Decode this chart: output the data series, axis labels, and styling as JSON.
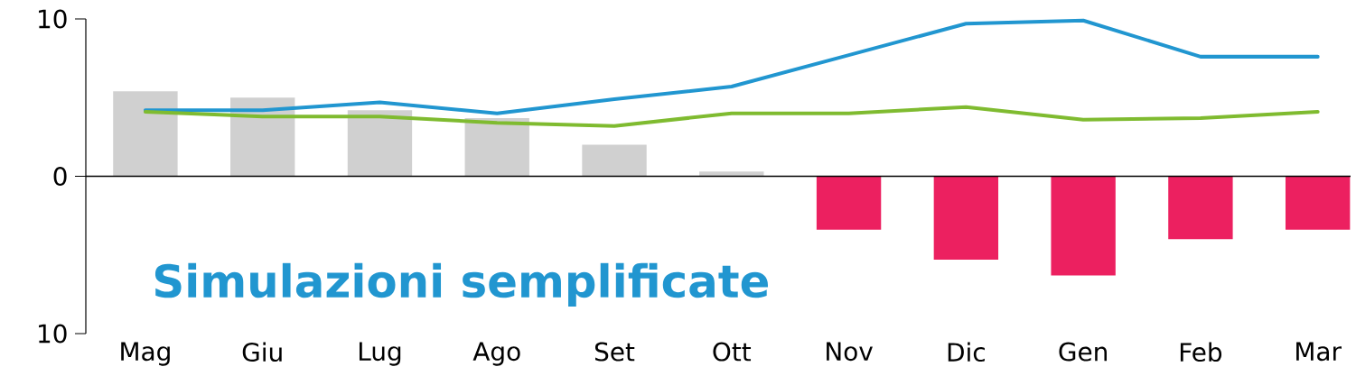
{
  "chart_data": {
    "type": "bar",
    "categories": [
      "Mag",
      "Giu",
      "Lug",
      "Ago",
      "Set",
      "Ott",
      "Nov",
      "Dic",
      "Gen",
      "Feb",
      "Mar"
    ],
    "series": [
      {
        "type": "bar",
        "values": [
          5.4,
          5.0,
          4.2,
          3.7,
          2.0,
          0.3,
          -3.4,
          -5.3,
          -6.3,
          -4.0,
          -3.4
        ],
        "colors": [
          "#d0d0d0",
          "#d0d0d0",
          "#d0d0d0",
          "#d0d0d0",
          "#d0d0d0",
          "#d0d0d0",
          "#ec2060",
          "#ec2060",
          "#ec2060",
          "#ec2060",
          "#ec2060"
        ]
      },
      {
        "type": "line",
        "color": "#2196d0",
        "values": [
          4.2,
          4.2,
          4.7,
          4.0,
          4.9,
          5.7,
          7.7,
          9.7,
          9.9,
          7.6,
          7.6
        ]
      },
      {
        "type": "line",
        "color": "#7fbb30",
        "values": [
          4.1,
          3.8,
          3.8,
          3.4,
          3.2,
          4.0,
          4.0,
          4.4,
          3.6,
          3.7,
          4.1
        ]
      }
    ],
    "ylim": [
      -10,
      10
    ],
    "yticks": [
      10,
      0,
      {
        "value": -10,
        "label": "10"
      }
    ],
    "annotations": [
      "Simulazioni semplificate"
    ]
  }
}
